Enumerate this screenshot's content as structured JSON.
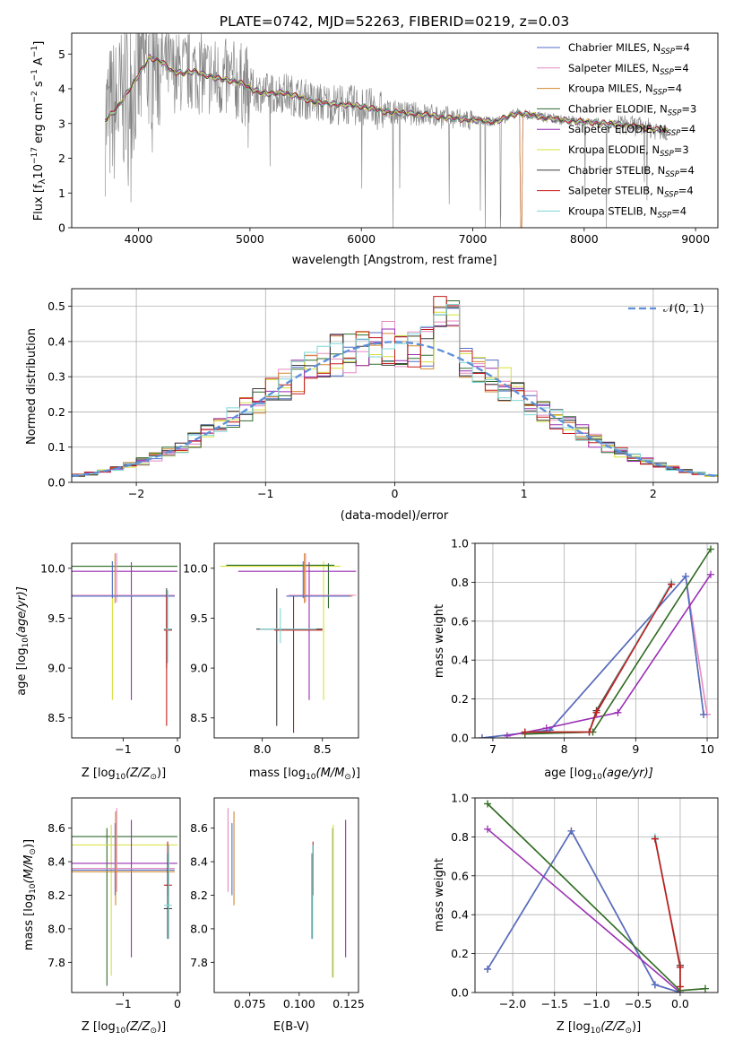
{
  "colors": {
    "Chabrier MILES": "#4f6fc4",
    "Salpeter MILES": "#e58ac0",
    "Kroupa MILES": "#d2882e",
    "Chabrier ELODIE": "#2f6b2f",
    "Salpeter ELODIE": "#9a2fb4",
    "Kroupa ELODIE": "#d6e03a",
    "Chabrier STELIB": "#3c3c3c",
    "Salpeter STELIB": "#c41a1a",
    "Kroupa STELIB": "#7fd6d6",
    "gaussian": "#5e8fd8"
  },
  "chart_data": [
    {
      "id": "spectrum",
      "type": "line",
      "title": "PLATE=0742, MJD=52263, FIBERID=0219, z=0.03",
      "xlabel": "wavelength [Angstrom, rest frame]",
      "ylabel_main": "Flux [f",
      "ylabel_sub_lambda": "λ",
      "ylabel_rest": "10",
      "ylabel_exp1": "−17",
      "ylabel_mid": " erg cm",
      "ylabel_exp2": "−2",
      "ylabel_s": " s",
      "ylabel_exp3": "−1",
      "ylabel_A": " A",
      "ylabel_exp4": "−1",
      "ylabel_end": "]",
      "xlim": [
        3400,
        9200
      ],
      "ylim": [
        0,
        5.6
      ],
      "xticks": [
        4000,
        5000,
        6000,
        7000,
        8000,
        9000
      ],
      "yticks": [
        0,
        1,
        2,
        3,
        4,
        5
      ],
      "legend": [
        {
          "name": "Chabrier MILES",
          "n": "N",
          "sub": "SSP",
          "val": "=4"
        },
        {
          "name": "Salpeter MILES",
          "n": "N",
          "sub": "SSP",
          "val": "=4"
        },
        {
          "name": "Kroupa MILES",
          "n": "N",
          "sub": "SSP",
          "val": "=4"
        },
        {
          "name": "Chabrier ELODIE",
          "n": "N",
          "sub": "SSP",
          "val": "=3"
        },
        {
          "name": "Salpeter ELODIE",
          "n": "N",
          "sub": "SSP",
          "val": "=4"
        },
        {
          "name": "Kroupa ELODIE",
          "n": "N",
          "sub": "SSP",
          "val": "=3"
        },
        {
          "name": "Chabrier STELIB",
          "n": "N",
          "sub": "SSP",
          "val": "=4"
        },
        {
          "name": "Salpeter STELIB",
          "n": "N",
          "sub": "SSP",
          "val": "=4"
        },
        {
          "name": "Kroupa STELIB",
          "n": "N",
          "sub": "SSP",
          "val": "=4"
        }
      ],
      "data_color": "#808080",
      "model_points": [
        [
          3700,
          3.1
        ],
        [
          3800,
          3.4
        ],
        [
          3900,
          3.9
        ],
        [
          4000,
          4.4
        ],
        [
          4100,
          4.9
        ],
        [
          4200,
          4.8
        ],
        [
          4300,
          4.5
        ],
        [
          4400,
          4.45
        ],
        [
          4500,
          4.5
        ],
        [
          4600,
          4.4
        ],
        [
          4700,
          4.3
        ],
        [
          4800,
          4.25
        ],
        [
          4900,
          4.2
        ],
        [
          5000,
          4.0
        ],
        [
          5100,
          3.9
        ],
        [
          5200,
          3.85
        ],
        [
          5300,
          3.9
        ],
        [
          5400,
          3.8
        ],
        [
          5500,
          3.7
        ],
        [
          5600,
          3.6
        ],
        [
          5800,
          3.55
        ],
        [
          6000,
          3.5
        ],
        [
          6200,
          3.35
        ],
        [
          6400,
          3.3
        ],
        [
          6600,
          3.25
        ],
        [
          6800,
          3.15
        ],
        [
          7000,
          3.1
        ],
        [
          7200,
          3.05
        ],
        [
          7400,
          3.3
        ],
        [
          7600,
          3.2
        ],
        [
          7800,
          3.1
        ],
        [
          8000,
          3.05
        ],
        [
          8200,
          3.0
        ],
        [
          8400,
          2.95
        ],
        [
          8600,
          2.85
        ],
        [
          8700,
          2.8
        ]
      ]
    },
    {
      "id": "residuals",
      "type": "line",
      "xlabel": "(data-model)/error",
      "ylabel": "Normed distribution",
      "legend_label": "𝒩(0, 1)",
      "xlim": [
        -2.5,
        2.5
      ],
      "ylim": [
        0,
        0.55
      ],
      "xticks": [
        -2,
        -1,
        0,
        1,
        2
      ],
      "yticks": [
        0.0,
        0.1,
        0.2,
        0.3,
        0.4,
        0.5
      ],
      "bin_width": 0.1,
      "histogram_peaks": [
        [
          0.35,
          0.53
        ],
        [
          0.35,
          0.51
        ],
        [
          0.0,
          0.45
        ]
      ]
    },
    {
      "id": "age_vs_Z",
      "type": "scatter",
      "xlabel_a": "Z [log",
      "xlabel_sub": "10",
      "xlabel_b": "(Z/Z",
      "xlabel_c": ")]",
      "ylabel_a": "age  [log",
      "ylabel_sub": "10",
      "ylabel_b": "(age/yr)]",
      "xlim": [
        -1.95,
        0.05
      ],
      "ylim": [
        8.3,
        10.25
      ],
      "xticks": [
        -1,
        0
      ],
      "yticks": [
        8.5,
        9.0,
        9.5,
        10.0
      ]
    },
    {
      "id": "age_vs_mass",
      "type": "scatter",
      "xlabel_a": "mass [log",
      "xlabel_sub": "10",
      "xlabel_b": "(M/M",
      "xlabel_c": ")]",
      "xlim": [
        7.6,
        8.8
      ],
      "ylim": [
        8.3,
        10.25
      ],
      "xticks": [
        8.0,
        8.5
      ],
      "yticks": [
        8.5,
        9.0,
        9.5,
        10.0
      ]
    },
    {
      "id": "massweight_vs_age",
      "type": "line",
      "xlabel_a": "age  [log",
      "xlabel_sub": "10",
      "xlabel_b": "(age/yr)]",
      "ylabel": "mass weight",
      "xlim": [
        6.75,
        10.15
      ],
      "ylim": [
        0,
        1
      ],
      "xticks": [
        7,
        8,
        9,
        10
      ],
      "yticks": [
        0.0,
        0.2,
        0.4,
        0.6,
        0.8,
        1.0
      ],
      "series": [
        {
          "model": "Kroupa MILES",
          "x": [
            6.85,
            7.8,
            9.7,
            9.95
          ],
          "y": [
            0.0,
            0.04,
            0.83,
            0.12
          ]
        },
        {
          "model": "Salpeter MILES",
          "x": [
            6.85,
            7.8,
            9.7,
            10.0
          ],
          "y": [
            0.0,
            0.04,
            0.83,
            0.12
          ]
        },
        {
          "model": "Chabrier MILES",
          "x": [
            6.85,
            7.8,
            9.7,
            9.95
          ],
          "y": [
            0.0,
            0.04,
            0.83,
            0.12
          ]
        },
        {
          "model": "Salpeter ELODIE",
          "x": [
            7.2,
            7.75,
            8.75,
            10.05
          ],
          "y": [
            0.01,
            0.05,
            0.13,
            0.84
          ]
        },
        {
          "model": "Kroupa ELODIE",
          "x": [
            7.45,
            8.4,
            10.05
          ],
          "y": [
            0.02,
            0.03,
            0.97
          ]
        },
        {
          "model": "Chabrier ELODIE",
          "x": [
            7.45,
            8.4,
            10.05
          ],
          "y": [
            0.02,
            0.03,
            0.97
          ]
        },
        {
          "model": "Chabrier STELIB",
          "x": [
            7.45,
            8.35,
            8.45,
            9.5
          ],
          "y": [
            0.03,
            0.03,
            0.14,
            0.79
          ]
        },
        {
          "model": "Kroupa STELIB",
          "x": [
            7.45,
            8.35,
            8.45,
            9.5
          ],
          "y": [
            0.03,
            0.03,
            0.13,
            0.8
          ]
        },
        {
          "model": "Salpeter STELIB",
          "x": [
            7.45,
            8.35,
            8.45,
            9.5
          ],
          "y": [
            0.03,
            0.03,
            0.13,
            0.79
          ]
        }
      ]
    },
    {
      "id": "mass_vs_Z",
      "type": "scatter",
      "xlabel_a": "Z [log",
      "xlabel_sub": "10",
      "xlabel_b": "(Z/Z",
      "xlabel_c": ")]",
      "ylabel_a": "mass [log",
      "ylabel_sub": "10",
      "ylabel_b": "(M/M",
      "ylabel_c": ")]",
      "xlim": [
        -1.95,
        0.05
      ],
      "ylim": [
        7.62,
        8.78
      ],
      "xticks": [
        -1,
        0
      ],
      "yticks": [
        7.8,
        8.0,
        8.2,
        8.4,
        8.6
      ]
    },
    {
      "id": "mass_vs_EBV",
      "type": "scatter",
      "xlabel": "E(B-V)",
      "xlim": [
        0.057,
        0.13
      ],
      "ylim": [
        7.62,
        8.78
      ],
      "xticks": [
        0.075,
        0.1,
        0.125
      ],
      "yticks": [
        7.8,
        8.0,
        8.2,
        8.4,
        8.6
      ]
    },
    {
      "id": "massweight_vs_Z",
      "type": "line",
      "xlabel_a": "Z [log",
      "xlabel_sub": "10",
      "xlabel_b": "(Z/Z",
      "xlabel_c": ")]",
      "ylabel": "mass weight",
      "xlim": [
        -2.45,
        0.45
      ],
      "ylim": [
        0,
        1
      ],
      "xticks": [
        -2.0,
        -1.5,
        -1.0,
        -0.5,
        0.0
      ],
      "yticks": [
        0.0,
        0.2,
        0.4,
        0.6,
        0.8,
        1.0
      ],
      "series": [
        {
          "model": "Kroupa MILES",
          "x": [
            -2.3,
            -1.3,
            -0.3,
            0.0
          ],
          "y": [
            0.12,
            0.83,
            0.04,
            0.0
          ]
        },
        {
          "model": "Salpeter MILES",
          "x": [
            -2.3,
            -1.3,
            -0.3,
            0.0
          ],
          "y": [
            0.12,
            0.83,
            0.04,
            0.0
          ]
        },
        {
          "model": "Chabrier MILES",
          "x": [
            -2.3,
            -1.3,
            -0.3,
            0.0
          ],
          "y": [
            0.12,
            0.83,
            0.04,
            0.0
          ]
        },
        {
          "model": "Salpeter ELODIE",
          "x": [
            -2.3,
            0.0
          ],
          "y": [
            0.84,
            0.0
          ]
        },
        {
          "model": "Kroupa ELODIE",
          "x": [
            -2.3,
            0.0,
            0.3
          ],
          "y": [
            0.97,
            0.01,
            0.02
          ]
        },
        {
          "model": "Chabrier ELODIE",
          "x": [
            -2.3,
            0.0,
            0.3
          ],
          "y": [
            0.97,
            0.01,
            0.02
          ]
        },
        {
          "model": "Chabrier STELIB",
          "x": [
            -0.3,
            0.0,
            0.0
          ],
          "y": [
            0.79,
            0.14,
            0.03
          ]
        },
        {
          "model": "Kroupa STELIB",
          "x": [
            -0.3,
            0.0,
            0.0
          ],
          "y": [
            0.8,
            0.13,
            0.03
          ]
        },
        {
          "model": "Salpeter STELIB",
          "x": [
            -0.3,
            0.0,
            0.0
          ],
          "y": [
            0.79,
            0.13,
            0.03
          ]
        }
      ]
    }
  ]
}
